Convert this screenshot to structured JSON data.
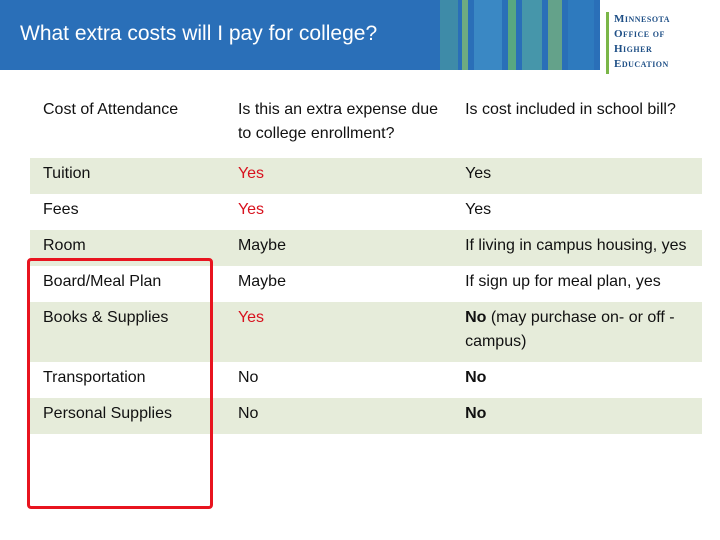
{
  "header": {
    "title": "What extra costs will I pay for college?",
    "logo_lines": [
      "Minnesota",
      "Office of",
      "Higher",
      "Education"
    ],
    "bg_color": "#2a6fb8",
    "stripe_colors": [
      "#5ab0a0",
      "#6cbf6a",
      "#3f8fc7",
      "#8cc46a",
      "#2f7bbf"
    ]
  },
  "table": {
    "headers": [
      "Cost of Attendance",
      "Is this an extra expense due to college enrollment?",
      "Is cost included in school bill?"
    ],
    "rows": [
      {
        "item": "Tuition",
        "extra": "Yes",
        "included": "Yes",
        "included_note": ""
      },
      {
        "item": "Fees",
        "extra": "Yes",
        "included": "Yes",
        "included_note": ""
      },
      {
        "item": "Room",
        "extra": "Maybe",
        "included": "If living in campus housing, yes",
        "included_note": ""
      },
      {
        "item": "Board/Meal Plan",
        "extra": "Maybe",
        "included": "If sign up for meal plan, yes",
        "included_note": ""
      },
      {
        "item": "Books & Supplies",
        "extra": "Yes",
        "included": "No",
        "included_note": " (may purchase on- or off -campus)"
      },
      {
        "item": "Transportation",
        "extra": "No",
        "included": "No",
        "included_note": ""
      },
      {
        "item": "Personal Supplies",
        "extra": "No",
        "included": "No",
        "included_note": ""
      }
    ],
    "highlight_color": "#e8141f",
    "row_alt_color": "#e6ecda",
    "yes_color": "#d8121e"
  }
}
